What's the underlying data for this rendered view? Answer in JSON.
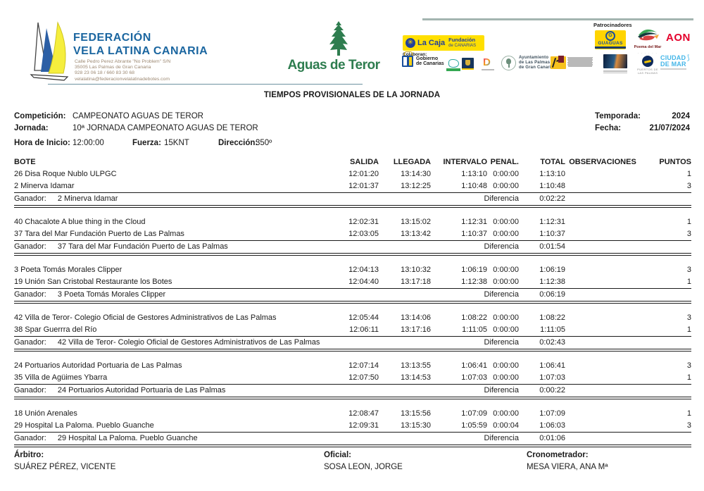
{
  "title": "TIEMPOS PROVISIONALES DE LA JORNADA",
  "header": {
    "federation": {
      "name_line1": "FEDERACIÓN",
      "name_line2": "VELA LATINA CANARIA",
      "address_line1": "Calle Pedro Perez Abrante \"No Problem\" S/N",
      "address_line2": "35005 Las Palmas de Gran Canaria",
      "address_line3": "928 23 06 18 /  660 83 30 68",
      "address_line4": "velalatina@federacionvelalatinadebotes.com"
    },
    "aguas_de_teror": "Aguas de Teror",
    "la_caja": {
      "icon": "✳",
      "name": "La Caja",
      "line1": "Fundación",
      "line2": "de CANARIAS"
    },
    "colaboran_label": "Colaboran:",
    "patrocinadores_label": "Patrocinadores",
    "gobierno": {
      "line1": "Gobierno",
      "line2": "de Canarias"
    },
    "ayuntamiento": {
      "line1": "Ayuntamiento",
      "line2": "de  Las  Palmas",
      "line3": "de Gran Canaria"
    },
    "guaguas": {
      "g": "G",
      "name": "GUAGUAS"
    },
    "poema_del_mar": "Poema del Mar",
    "aon": "AON",
    "puertos": "PUERTOS DE LAS PALMAS",
    "ciudad_de_mar": {
      "line1": "CIUDAD",
      "line2": "DE MAR",
      "ribbon": "⟆"
    }
  },
  "info": {
    "competicion_label": "Competición:",
    "competicion": "CAMPEONATO AGUAS DE TEROR",
    "temporada_label": "Temporada:",
    "temporada": "2024",
    "jornada_label": "Jornada:",
    "jornada": "10ª JORNADA CAMPEONATO AGUAS DE TEROR",
    "fecha_label": "Fecha:",
    "fecha": "21/07/2024",
    "hora_inicio_label": "Hora de Inicio:",
    "hora_inicio": "12:00:00",
    "fuerza_label": "Fuerza:",
    "fuerza": "15KNT",
    "direccion_label": "Dirección:",
    "direccion": "350º"
  },
  "table": {
    "headers": [
      "BOTE",
      "SALIDA",
      "LLEGADA",
      "INTERVALO",
      "PENAL.",
      "TOTAL",
      "OBSERVACIONES",
      "PUNTOS"
    ],
    "ganador_label": "Ganador:",
    "diferencia_label": "Diferencia",
    "sections": [
      {
        "rows": [
          {
            "bote": "26 Disa Roque Nublo ULPGC",
            "salida": "12:01:20",
            "llegada": "13:14:30",
            "intervalo": "1:13:10",
            "penal": "0:00:00",
            "total": "1:13:10",
            "observaciones": "",
            "puntos": "1"
          },
          {
            "bote": "2 Minerva  Idamar",
            "salida": "12:01:37",
            "llegada": "13:12:25",
            "intervalo": "1:10:48",
            "penal": "0:00:00",
            "total": "1:10:48",
            "observaciones": "",
            "puntos": "3"
          }
        ],
        "ganador": "2 Minerva  Idamar",
        "diferencia": "0:02:22"
      },
      {
        "rows": [
          {
            "bote": "40 Chacalote A blue thing in the Cloud",
            "salida": "12:02:31",
            "llegada": "13:15:02",
            "intervalo": "1:12:31",
            "penal": "0:00:00",
            "total": "1:12:31",
            "observaciones": "",
            "puntos": "1"
          },
          {
            "bote": "37 Tara del Mar Fundación Puerto de Las Palmas",
            "salida": "12:03:05",
            "llegada": "13:13:42",
            "intervalo": "1:10:37",
            "penal": "0:00:00",
            "total": "1:10:37",
            "observaciones": "",
            "puntos": "3"
          }
        ],
        "ganador": "37 Tara del Mar Fundación Puerto de Las Palmas",
        "diferencia": "0:01:54"
      },
      {
        "rows": [
          {
            "bote": "3 Poeta Tomás Morales Clipper",
            "salida": "12:04:13",
            "llegada": "13:10:32",
            "intervalo": "1:06:19",
            "penal": "0:00:00",
            "total": "1:06:19",
            "observaciones": "",
            "puntos": "3"
          },
          {
            "bote": "19 Unión San Cristobal Restaurante los Botes",
            "salida": "12:04:40",
            "llegada": "13:17:18",
            "intervalo": "1:12:38",
            "penal": "0:00:00",
            "total": "1:12:38",
            "observaciones": "",
            "puntos": "1"
          }
        ],
        "ganador": "3 Poeta Tomás Morales Clipper",
        "diferencia": "0:06:19"
      },
      {
        "rows": [
          {
            "bote": "42 Villa de Teror- Colegio Oficial de Gestores Administrativos de Las Palmas",
            "salida": "12:05:44",
            "llegada": "13:14:06",
            "intervalo": "1:08:22",
            "penal": "0:00:00",
            "total": "1:08:22",
            "observaciones": "",
            "puntos": "3"
          },
          {
            "bote": "38 Spar Guerrra del Río",
            "salida": "12:06:11",
            "llegada": "13:17:16",
            "intervalo": "1:11:05",
            "penal": "0:00:00",
            "total": "1:11:05",
            "observaciones": "",
            "puntos": "1"
          }
        ],
        "ganador": "42 Villa de Teror- Colegio Oficial de Gestores Administrativos de Las Palmas",
        "diferencia": "0:02:43"
      },
      {
        "rows": [
          {
            "bote": "24 Portuarios Autoridad Portuaria de Las Palmas",
            "salida": "12:07:14",
            "llegada": "13:13:55",
            "intervalo": "1:06:41",
            "penal": "0:00:00",
            "total": "1:06:41",
            "observaciones": "",
            "puntos": "3"
          },
          {
            "bote": "35 Villa de Agüimes Ybarra",
            "salida": "12:07:50",
            "llegada": "13:14:53",
            "intervalo": "1:07:03",
            "penal": "0:00:00",
            "total": "1:07:03",
            "observaciones": "",
            "puntos": "1"
          }
        ],
        "ganador": "24 Portuarios Autoridad Portuaria de Las Palmas",
        "diferencia": "0:00:22"
      },
      {
        "rows": [
          {
            "bote": "18 Unión Arenales",
            "salida": "12:08:47",
            "llegada": "13:15:56",
            "intervalo": "1:07:09",
            "penal": "0:00:00",
            "total": "1:07:09",
            "observaciones": "",
            "puntos": "1"
          },
          {
            "bote": "29 Hospital La Paloma. Pueblo Guanche",
            "salida": "12:09:31",
            "llegada": "13:15:30",
            "intervalo": "1:05:59",
            "penal": "0:00:04",
            "total": "1:06:03",
            "observaciones": "",
            "puntos": "3"
          }
        ],
        "ganador": "29 Hospital La Paloma. Pueblo Guanche",
        "diferencia": "0:01:06"
      }
    ]
  },
  "footer": {
    "arbitro_label": "Árbitro:",
    "arbitro": "SUÁREZ PÉREZ, VICENTE",
    "oficial_label": "Oficial:",
    "oficial": "SOSA LEON, JORGE",
    "cronometrador_label": "Cronometrador:",
    "cronometrador": "MESA VIERA, ANA Mª"
  },
  "colors": {
    "federation_blue": "#1b66a0",
    "aguas_green": "#2e7d4f",
    "la_caja_yellow": "#ffdf00",
    "la_caja_blue": "#21409a",
    "aon_red": "#e4002b",
    "ciudad_de_mar_blue": "#45b6e8",
    "guaguas_yellow": "#ffd400"
  }
}
